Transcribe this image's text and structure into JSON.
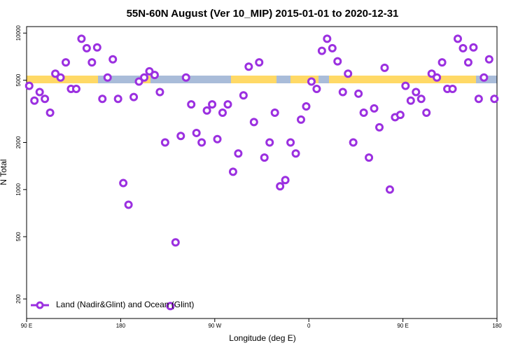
{
  "chart_data": {
    "type": "scatter",
    "title": "55N-60N August (Ver 10_MIP)   2015-01-01 to 2020-12-31",
    "x_label": "Longitude (deg E)",
    "y_label": "N Total",
    "series": [
      {
        "name": "Land (Nadir&Glint) and Ocean (Glint)",
        "color": "#9b30e0",
        "x": [
          92.5,
          97.5,
          102.5,
          107.5,
          112.5,
          117.5,
          122.5,
          127.5,
          132.5,
          137.5,
          142.5,
          147.5,
          152.5,
          157.5,
          162.5,
          167.5,
          172.5,
          177.5,
          182.5,
          187.5,
          192.5,
          197.5,
          202.5,
          207.5,
          212.5,
          217.5,
          222.5,
          227.5,
          232.5,
          237.5,
          242.5,
          247.5,
          252.5,
          257.5,
          262.5,
          267.5,
          272.5,
          277.5,
          282.5,
          287.5,
          292.5,
          297.5,
          302.5,
          307.5,
          312.5,
          317.5,
          322.5,
          327.5,
          332.5,
          337.5,
          342.5,
          347.5,
          352.5,
          357.5,
          362.5,
          367.5,
          372.5,
          377.5,
          382.5,
          387.5,
          392.5,
          397.5,
          402.5,
          407.5,
          412.5,
          417.5,
          422.5,
          427.5,
          432.5,
          437.5,
          442.5,
          447.5,
          452.5,
          457.5,
          462.5,
          467.5,
          472.5,
          477.5,
          482.5,
          487.5,
          492.5,
          497.5,
          502.5,
          507.5,
          512.5,
          517.5,
          522.5,
          527.5,
          532.5,
          537.5
        ],
        "values": [
          4600,
          3700,
          4200,
          3800,
          3100,
          5500,
          5200,
          6500,
          4400,
          4400,
          9200,
          8000,
          6500,
          8100,
          3800,
          5200,
          6800,
          3800,
          1100,
          800,
          3900,
          4900,
          5200,
          5700,
          5400,
          4200,
          2000,
          180,
          460,
          2200,
          5200,
          3500,
          2300,
          2000,
          3200,
          3500,
          2100,
          3100,
          3500,
          1300,
          1700,
          4000,
          6100,
          2700,
          6500,
          1600,
          2000,
          3100,
          1050,
          1150,
          2000,
          1700,
          2800,
          3400,
          4900,
          4400,
          7700,
          9200,
          8000,
          6600,
          4200,
          5500,
          2000,
          4100,
          3100,
          1600,
          3300,
          2500,
          6000,
          1000,
          2900,
          3000,
          4600,
          3700,
          4200,
          3800,
          3100,
          5500,
          5200,
          6500,
          4400,
          4400,
          9200,
          8000,
          6500,
          8100,
          3800,
          5200,
          6800,
          3800
        ]
      }
    ],
    "xlim": [
      90,
      540
    ],
    "xticks": [
      {
        "value": 90,
        "label": "90 E"
      },
      180,
      {
        "value": 270,
        "label": "90 W"
      },
      {
        "value": 360,
        "label": "0"
      },
      {
        "value": 450,
        "label": "90 E"
      },
      {
        "value": 540,
        "label": "180"
      }
    ],
    "ylim": [
      150,
      11000
    ],
    "yticks": [
      200,
      500,
      1000,
      2000,
      5000,
      10000
    ],
    "log_y": true,
    "legend": "lower left"
  }
}
